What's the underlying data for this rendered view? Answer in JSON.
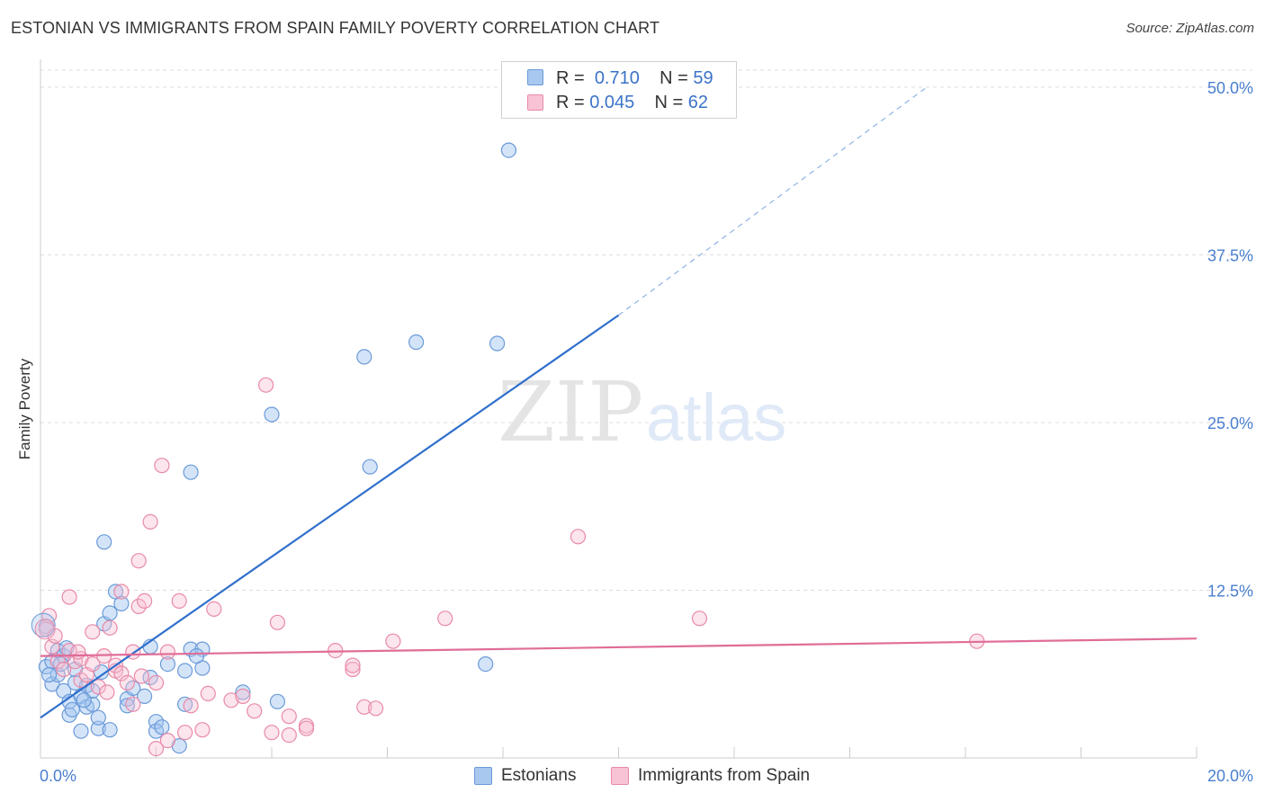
{
  "header": {
    "title": "ESTONIAN VS IMMIGRANTS FROM SPAIN FAMILY POVERTY CORRELATION CHART",
    "source": "Source: ZipAtlas.com"
  },
  "watermark": {
    "zip": "ZIP",
    "atlas": "atlas"
  },
  "legend": {
    "rows": [
      {
        "r_label": "R =",
        "r_value": "0.710",
        "n_label": "N =",
        "n_value": "59",
        "color": "#a9c8f0",
        "border": "#6a9ad8"
      },
      {
        "r_label": "R =",
        "r_value": "0.045",
        "n_label": "N =",
        "n_value": "62",
        "color": "#f8c3d4",
        "border": "#e88aa8"
      }
    ]
  },
  "bottom_legend": [
    {
      "label": "Estonians",
      "color": "#a9c8f0",
      "border": "#6a9ad8"
    },
    {
      "label": "Immigrants from Spain",
      "color": "#f8c3d4",
      "border": "#e88aa8"
    }
  ],
  "chart_data": {
    "type": "scatter",
    "title": "ESTONIAN VS IMMIGRANTS FROM SPAIN FAMILY POVERTY CORRELATION CHART",
    "xlabel": "",
    "ylabel": "Family Poverty",
    "xlim": [
      0,
      20
    ],
    "ylim": [
      0,
      50
    ],
    "x_tick_labels": [
      "0.0%",
      "20.0%"
    ],
    "y_ticks": [
      12.5,
      25.0,
      37.5,
      50.0
    ],
    "y_tick_labels": [
      "12.5%",
      "25.0%",
      "37.5%",
      "50.0%"
    ],
    "grid": true,
    "series": [
      {
        "name": "Estonians",
        "color": "#6a9ad8",
        "fill": "rgba(160,195,240,0.45)",
        "line_color": "#2f6fcc",
        "trend": {
          "x0": 0.0,
          "y0": 3.0,
          "x1": 10.0,
          "y1": 33.0,
          "dash_x1": 15.3,
          "dash_y1": 49.9
        },
        "points": [
          [
            0.1,
            6.8
          ],
          [
            0.2,
            5.5
          ],
          [
            0.2,
            7.2
          ],
          [
            0.3,
            8.0
          ],
          [
            0.3,
            6.2
          ],
          [
            0.4,
            5.0
          ],
          [
            0.4,
            7.6
          ],
          [
            0.5,
            4.2
          ],
          [
            0.5,
            3.2
          ],
          [
            0.6,
            5.6
          ],
          [
            0.6,
            6.6
          ],
          [
            0.7,
            4.6
          ],
          [
            0.7,
            2.0
          ],
          [
            0.8,
            3.8
          ],
          [
            0.8,
            5.4
          ],
          [
            0.9,
            4.0
          ],
          [
            0.9,
            5.0
          ],
          [
            1.0,
            2.2
          ],
          [
            1.0,
            3.0
          ],
          [
            1.1,
            10.0
          ],
          [
            1.1,
            16.1
          ],
          [
            1.2,
            2.1
          ],
          [
            1.2,
            10.8
          ],
          [
            1.3,
            12.4
          ],
          [
            1.4,
            11.5
          ],
          [
            1.5,
            4.4
          ],
          [
            1.5,
            3.9
          ],
          [
            1.6,
            5.2
          ],
          [
            1.8,
            4.6
          ],
          [
            1.9,
            6.0
          ],
          [
            1.9,
            8.3
          ],
          [
            2.0,
            2.7
          ],
          [
            2.0,
            2.0
          ],
          [
            2.1,
            2.3
          ],
          [
            2.2,
            7.0
          ],
          [
            2.4,
            0.9
          ],
          [
            2.5,
            4.0
          ],
          [
            2.5,
            6.5
          ],
          [
            2.6,
            21.3
          ],
          [
            2.6,
            8.1
          ],
          [
            2.8,
            6.7
          ],
          [
            2.8,
            8.1
          ],
          [
            3.5,
            4.9
          ],
          [
            4.0,
            25.6
          ],
          [
            4.1,
            4.2
          ],
          [
            5.6,
            29.9
          ],
          [
            5.7,
            21.7
          ],
          [
            6.5,
            31.0
          ],
          [
            7.7,
            7.0
          ],
          [
            7.9,
            30.9
          ],
          [
            8.1,
            45.3
          ],
          [
            0.1,
            9.8
          ],
          [
            0.15,
            6.2
          ],
          [
            0.35,
            7.0
          ],
          [
            0.45,
            8.2
          ],
          [
            0.55,
            3.6
          ],
          [
            0.75,
            4.3
          ],
          [
            1.05,
            6.4
          ],
          [
            2.7,
            7.6
          ]
        ]
      },
      {
        "name": "Immigrants from Spain",
        "color": "#e88aa8",
        "fill": "rgba(248,190,210,0.40)",
        "line_color": "#e06d98",
        "trend": {
          "x0": 0.0,
          "y0": 7.6,
          "x1": 20.0,
          "y1": 8.9
        },
        "points": [
          [
            0.1,
            9.6
          ],
          [
            0.2,
            8.3
          ],
          [
            0.3,
            7.2
          ],
          [
            0.4,
            6.6
          ],
          [
            0.5,
            8.0
          ],
          [
            0.5,
            12.0
          ],
          [
            0.6,
            7.2
          ],
          [
            0.7,
            5.8
          ],
          [
            0.7,
            7.4
          ],
          [
            0.8,
            6.2
          ],
          [
            0.9,
            7.0
          ],
          [
            0.9,
            9.4
          ],
          [
            1.0,
            5.3
          ],
          [
            1.1,
            7.6
          ],
          [
            1.2,
            9.7
          ],
          [
            1.3,
            6.5
          ],
          [
            1.3,
            6.9
          ],
          [
            1.4,
            6.3
          ],
          [
            1.4,
            12.4
          ],
          [
            1.5,
            5.6
          ],
          [
            1.6,
            4.0
          ],
          [
            1.6,
            7.9
          ],
          [
            1.7,
            11.3
          ],
          [
            1.7,
            14.7
          ],
          [
            1.8,
            11.7
          ],
          [
            1.9,
            17.6
          ],
          [
            2.0,
            0.7
          ],
          [
            2.0,
            5.6
          ],
          [
            2.1,
            21.8
          ],
          [
            2.2,
            1.3
          ],
          [
            2.2,
            7.9
          ],
          [
            2.4,
            11.7
          ],
          [
            2.5,
            1.9
          ],
          [
            2.6,
            3.9
          ],
          [
            2.8,
            2.1
          ],
          [
            2.9,
            4.8
          ],
          [
            3.0,
            11.1
          ],
          [
            3.3,
            4.3
          ],
          [
            3.5,
            4.6
          ],
          [
            3.7,
            3.5
          ],
          [
            3.9,
            27.8
          ],
          [
            4.0,
            1.9
          ],
          [
            4.1,
            10.1
          ],
          [
            4.3,
            1.7
          ],
          [
            4.3,
            3.1
          ],
          [
            4.6,
            2.4
          ],
          [
            4.6,
            2.2
          ],
          [
            5.1,
            8.0
          ],
          [
            5.4,
            6.6
          ],
          [
            5.4,
            6.9
          ],
          [
            5.6,
            3.8
          ],
          [
            5.8,
            3.7
          ],
          [
            6.1,
            8.7
          ],
          [
            7.0,
            10.4
          ],
          [
            9.3,
            16.5
          ],
          [
            11.4,
            10.4
          ],
          [
            16.2,
            8.7
          ],
          [
            0.15,
            10.6
          ],
          [
            0.25,
            9.1
          ],
          [
            0.65,
            7.9
          ],
          [
            1.15,
            4.9
          ],
          [
            1.75,
            6.1
          ]
        ]
      }
    ]
  }
}
